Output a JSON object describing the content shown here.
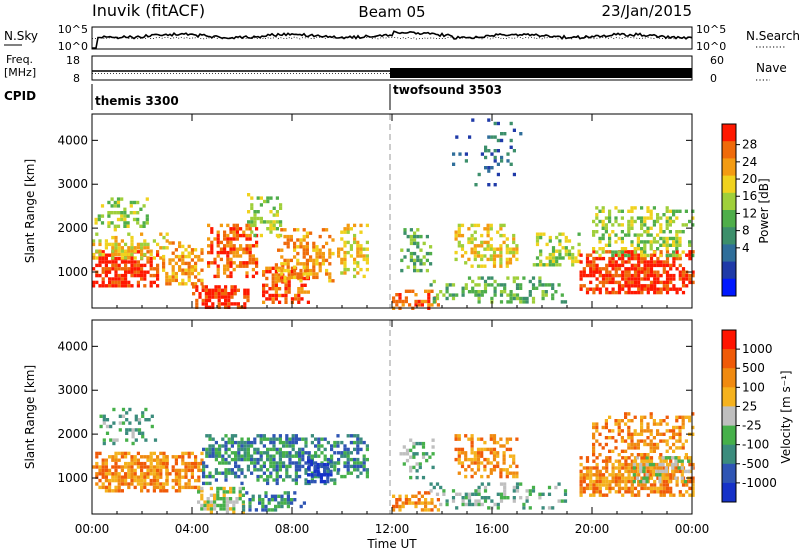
{
  "header": {
    "station": "Inuvik (fitACF)",
    "beam": "Beam 05",
    "date": "23/Jan/2015"
  },
  "top_panels": {
    "nsky_label": "N.Sky",
    "nsky_ticks": [
      "10^5",
      "10^0"
    ],
    "nsearch_label": "N.Search",
    "nsearch_ticks": [
      "10^5",
      "10^0"
    ],
    "freq_label_1": "Freq.",
    "freq_label_2": "[MHz]",
    "freq_ticks": [
      "18",
      "8"
    ],
    "nave_label": "Nave",
    "nave_ticks": [
      "60",
      "0"
    ],
    "cpid_label": "CPID",
    "cpid_segments": [
      {
        "name": "themis 3300",
        "start_hour": 0,
        "end_hour": 12
      },
      {
        "name": "twofsound 3503",
        "start_hour": 12,
        "end_hour": 24
      }
    ]
  },
  "chart_data": [
    {
      "type": "heatmap",
      "panel": "power",
      "ylabel": "Slant Range [km]",
      "xlabel": "",
      "x_ticks": [
        "00:00",
        "04:00",
        "08:00",
        "12:00",
        "16:00",
        "20:00",
        "00:00"
      ],
      "x_range_hours": [
        0,
        24
      ],
      "y_ticks": [
        1000,
        2000,
        3000,
        4000
      ],
      "y_range_km": [
        180,
        4600
      ],
      "colorbar": {
        "label": "Power [dB]",
        "ticks": [
          "4",
          "8",
          "12",
          "16",
          "20",
          "24",
          "28"
        ],
        "colors": [
          "#0018ff",
          "#1f3aa8",
          "#2f6e9a",
          "#3c8f6b",
          "#4fae4a",
          "#9fcf3a",
          "#f0d21e",
          "#f39b12",
          "#ef6a0a",
          "#ff1800"
        ]
      },
      "regions": [
        {
          "x": [
            0.0,
            2.6
          ],
          "y": [
            700,
            1500
          ],
          "level": 9,
          "density": 0.85
        },
        {
          "x": [
            0.0,
            3.0
          ],
          "y": [
            1300,
            1900
          ],
          "level": 6,
          "density": 0.6
        },
        {
          "x": [
            0.1,
            2.2
          ],
          "y": [
            2000,
            2700
          ],
          "level": 5,
          "density": 0.45
        },
        {
          "x": [
            2.8,
            4.4
          ],
          "y": [
            700,
            1700
          ],
          "level": 7,
          "density": 0.65
        },
        {
          "x": [
            4.0,
            6.2
          ],
          "y": [
            200,
            700
          ],
          "level": 9,
          "density": 0.8
        },
        {
          "x": [
            4.6,
            6.6
          ],
          "y": [
            900,
            2100
          ],
          "level": 8,
          "density": 0.7
        },
        {
          "x": [
            6.2,
            7.6
          ],
          "y": [
            1800,
            2800
          ],
          "level": 5,
          "density": 0.5
        },
        {
          "x": [
            6.8,
            8.6
          ],
          "y": [
            300,
            1200
          ],
          "level": 8,
          "density": 0.7
        },
        {
          "x": [
            7.4,
            9.6
          ],
          "y": [
            800,
            2000
          ],
          "level": 7,
          "density": 0.65
        },
        {
          "x": [
            9.8,
            11.0
          ],
          "y": [
            900,
            2100
          ],
          "level": 6,
          "density": 0.6
        },
        {
          "x": [
            12.0,
            13.8
          ],
          "y": [
            200,
            600
          ],
          "level": 8,
          "density": 0.6
        },
        {
          "x": [
            12.2,
            13.5
          ],
          "y": [
            1000,
            2000
          ],
          "level": 4,
          "density": 0.45
        },
        {
          "x": [
            14.5,
            17.0
          ],
          "y": [
            1100,
            2100
          ],
          "level": 6,
          "density": 0.55
        },
        {
          "x": [
            13.5,
            19.0
          ],
          "y": [
            300,
            900
          ],
          "level": 4,
          "density": 0.4
        },
        {
          "x": [
            17.5,
            19.5
          ],
          "y": [
            1200,
            1900
          ],
          "level": 5,
          "density": 0.5
        },
        {
          "x": [
            19.5,
            24.0
          ],
          "y": [
            500,
            1500
          ],
          "level": 9,
          "density": 0.85
        },
        {
          "x": [
            20.0,
            24.0
          ],
          "y": [
            1400,
            2500
          ],
          "level": 5,
          "density": 0.55
        },
        {
          "x": [
            14.4,
            17.2
          ],
          "y": [
            3000,
            4500
          ],
          "level": 2,
          "density": 0.15
        }
      ]
    },
    {
      "type": "heatmap",
      "panel": "velocity",
      "ylabel": "Slant Range [km]",
      "xlabel": "Time UT",
      "x_ticks": [
        "00:00",
        "04:00",
        "08:00",
        "12:00",
        "16:00",
        "20:00",
        "00:00"
      ],
      "x_range_hours": [
        0,
        24
      ],
      "y_ticks": [
        1000,
        2000,
        3000,
        4000
      ],
      "y_range_km": [
        180,
        4600
      ],
      "colorbar": {
        "label": "Velocity [m s⁻¹]",
        "ticks": [
          "1000",
          "500",
          "100",
          "25",
          "-25",
          "-100",
          "-500",
          "-1000"
        ],
        "colors": [
          "#1632c8",
          "#2f55b4",
          "#3b8c7d",
          "#46b04a",
          "#bfbfbf",
          "#f5b21e",
          "#f08a10",
          "#f05a08",
          "#ff1400"
        ]
      },
      "regions": [
        {
          "x": [
            0.0,
            3.0
          ],
          "y": [
            700,
            1600
          ],
          "level": 6,
          "density": 0.85
        },
        {
          "x": [
            0.3,
            2.5
          ],
          "y": [
            1800,
            2600
          ],
          "level": 3,
          "density": 0.35
        },
        {
          "x": [
            2.8,
            4.4
          ],
          "y": [
            700,
            1600
          ],
          "level": 6,
          "density": 0.7
        },
        {
          "x": [
            4.4,
            9.8
          ],
          "y": [
            900,
            2000
          ],
          "level": 2,
          "density": 0.75
        },
        {
          "x": [
            8.6,
            9.6
          ],
          "y": [
            900,
            1500
          ],
          "level": 0,
          "density": 0.7
        },
        {
          "x": [
            4.2,
            6.0
          ],
          "y": [
            250,
            800
          ],
          "level": 4,
          "density": 0.8
        },
        {
          "x": [
            6.0,
            8.5
          ],
          "y": [
            250,
            700
          ],
          "level": 2,
          "density": 0.5
        },
        {
          "x": [
            9.8,
            11.0
          ],
          "y": [
            1000,
            2000
          ],
          "level": 2,
          "density": 0.65
        },
        {
          "x": [
            12.0,
            13.8
          ],
          "y": [
            250,
            700
          ],
          "level": 6,
          "density": 0.6
        },
        {
          "x": [
            12.3,
            13.6
          ],
          "y": [
            1000,
            1900
          ],
          "level": 3,
          "density": 0.4
        },
        {
          "x": [
            14.5,
            17.0
          ],
          "y": [
            1000,
            2000
          ],
          "level": 6,
          "density": 0.65
        },
        {
          "x": [
            13.5,
            19.0
          ],
          "y": [
            300,
            900
          ],
          "level": 3,
          "density": 0.4
        },
        {
          "x": [
            19.5,
            24.0
          ],
          "y": [
            600,
            1500
          ],
          "level": 6,
          "density": 0.85
        },
        {
          "x": [
            21.5,
            24.0
          ],
          "y": [
            900,
            1500
          ],
          "level": 4,
          "density": 0.6
        },
        {
          "x": [
            20.0,
            24.0
          ],
          "y": [
            1500,
            2500
          ],
          "level": 6,
          "density": 0.5
        }
      ]
    }
  ]
}
